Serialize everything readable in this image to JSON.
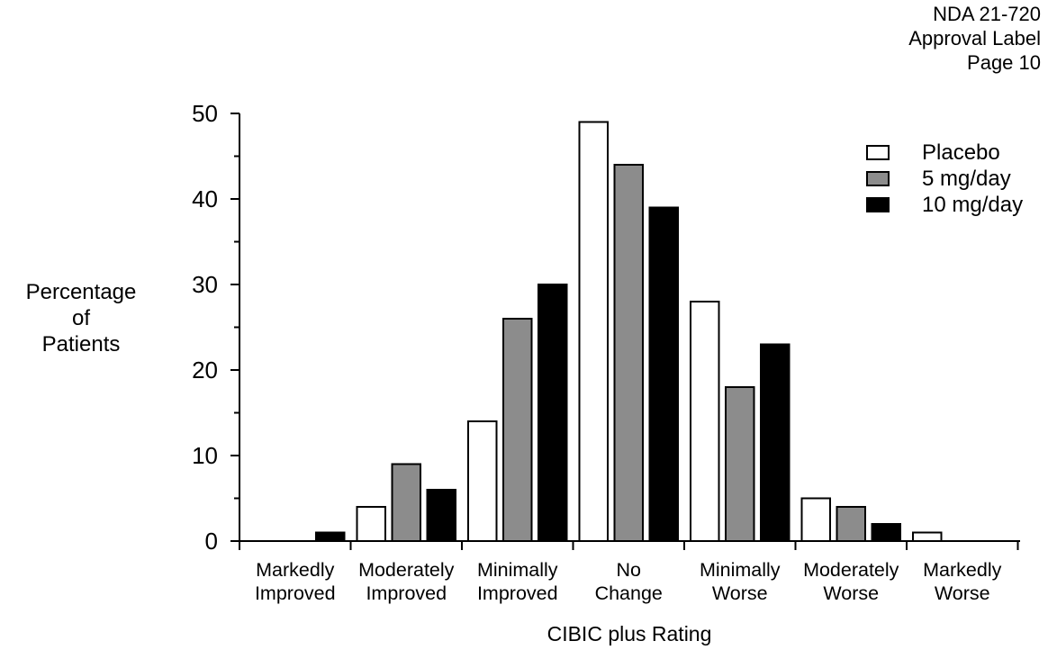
{
  "header": {
    "line1": "NDA 21-720",
    "line2": "Approval Label",
    "line3": "Page 10"
  },
  "chart_data": {
    "type": "bar",
    "title": "",
    "xlabel": "CIBIC plus Rating",
    "ylabel": [
      "Percentage",
      "of",
      "Patients"
    ],
    "ylim": [
      0,
      50
    ],
    "yticks": [
      0,
      10,
      20,
      30,
      40,
      50
    ],
    "grid": false,
    "legend_position": "top-right",
    "categories": [
      [
        "Markedly",
        "Improved"
      ],
      [
        "Moderately",
        "Improved"
      ],
      [
        "Minimally",
        "Improved"
      ],
      [
        "No",
        "Change"
      ],
      [
        "Minimally",
        "Worse"
      ],
      [
        "Moderately",
        "Worse"
      ],
      [
        "Markedly",
        "Worse"
      ]
    ],
    "series": [
      {
        "name": "Placebo",
        "color": "#ffffff",
        "values": [
          0,
          4,
          14,
          49,
          28,
          5,
          1
        ]
      },
      {
        "name": "5 mg/day",
        "color": "#8c8c8c",
        "values": [
          0,
          9,
          26,
          44,
          18,
          4,
          0
        ]
      },
      {
        "name": "10 mg/day",
        "color": "#000000",
        "values": [
          1,
          6,
          30,
          39,
          23,
          2,
          0
        ]
      }
    ]
  }
}
